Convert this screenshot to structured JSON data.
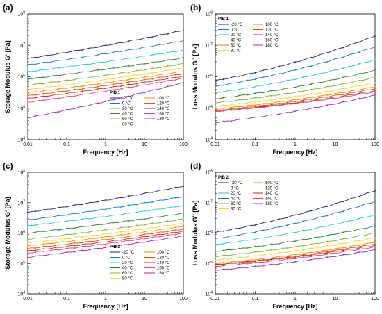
{
  "figure": {
    "panel_labels": [
      "(a)",
      "(b)",
      "(c)",
      "(d)"
    ]
  },
  "temperatures": [
    "-20 °C",
    "0 °C",
    "20 °C",
    "40 °C",
    "60 °C",
    "80 °C",
    "100 °C",
    "120 °C",
    "140 °C",
    "160 °C",
    "180 °C"
  ],
  "colors": [
    "#1a237e",
    "#1976d2",
    "#26c6da",
    "#2e7d32",
    "#7cb342",
    "#fdd835",
    "#fb8c00",
    "#e65100",
    "#c62828",
    "#ec407a",
    "#9c27b0"
  ],
  "chart_data": [
    {
      "type": "line",
      "title": "",
      "legend_title": "PIB 1",
      "legend_placement": "bottom-right",
      "xlabel": "Frequency [Hz]",
      "ylabel": "Storage Modulus G' [Pa]",
      "xscale": "log",
      "yscale": "log",
      "xlim": [
        0.01,
        100
      ],
      "ylim": [
        10000,
        100000000
      ],
      "x_ticks": [
        "0.01",
        "0.1",
        "1",
        "10",
        "100"
      ],
      "y_ticks": [
        "10^4",
        "10^5",
        "10^6",
        "10^7",
        "10^8"
      ],
      "x": [
        0.01,
        100
      ],
      "series": [
        {
          "name": "-20 °C",
          "values": [
            3800000,
            30000000
          ]
        },
        {
          "name": "0 °C",
          "values": [
            2400000,
            14000000
          ]
        },
        {
          "name": "20 °C",
          "values": [
            1450000,
            7000000
          ]
        },
        {
          "name": "40 °C",
          "values": [
            850000,
            4000000
          ]
        },
        {
          "name": "60 °C",
          "values": [
            540000,
            2600000
          ]
        },
        {
          "name": "80 °C",
          "values": [
            390000,
            1900000
          ]
        },
        {
          "name": "100 °C",
          "values": [
            310000,
            1500000
          ]
        },
        {
          "name": "120 °C",
          "values": [
            250000,
            1250000
          ]
        },
        {
          "name": "140 °C",
          "values": [
            205000,
            1050000
          ]
        },
        {
          "name": "160 °C",
          "values": [
            155000,
            900000
          ]
        },
        {
          "name": "180 °C",
          "values": [
            50000,
            650000
          ]
        }
      ]
    },
    {
      "type": "line",
      "title": "",
      "legend_title": "PIB 1",
      "legend_placement": "top-left",
      "xlabel": "Frequency [Hz]",
      "ylabel": "Loss Modulus G'' [Pa]",
      "xscale": "log",
      "yscale": "log",
      "xlim": [
        0.01,
        100
      ],
      "ylim": [
        10000,
        100000000
      ],
      "x_ticks": [
        "0.01",
        "0.1",
        "1",
        "10",
        "100"
      ],
      "y_ticks": [
        "10^4",
        "10^5",
        "10^6",
        "10^7",
        "10^8"
      ],
      "x": [
        0.01,
        100
      ],
      "series": [
        {
          "name": "-20 °C",
          "values": [
            750000,
            20000000
          ]
        },
        {
          "name": "0 °C",
          "values": [
            500000,
            9000000
          ]
        },
        {
          "name": "20 °C",
          "values": [
            310000,
            3500000
          ]
        },
        {
          "name": "40 °C",
          "values": [
            200000,
            1600000
          ]
        },
        {
          "name": "60 °C",
          "values": [
            150000,
            950000
          ]
        },
        {
          "name": "80 °C",
          "values": [
            115000,
            650000
          ]
        },
        {
          "name": "100 °C",
          "values": [
            95000,
            480000
          ]
        },
        {
          "name": "120 °C",
          "values": [
            85000,
            420000
          ]
        },
        {
          "name": "140 °C",
          "values": [
            80000,
            360000
          ]
        },
        {
          "name": "160 °C",
          "values": [
            78000,
            330000
          ]
        },
        {
          "name": "180 °C",
          "values": [
            35000,
            260000
          ]
        }
      ]
    },
    {
      "type": "line",
      "title": "",
      "legend_title": "PIB 2",
      "legend_placement": "bottom-right",
      "xlabel": "Frequency [Hz]",
      "ylabel": "Storage Modulus G' [Pa]",
      "xscale": "log",
      "yscale": "log",
      "xlim": [
        0.01,
        100
      ],
      "ylim": [
        10000,
        100000000
      ],
      "x_ticks": [
        "0.01",
        "0.1",
        "1",
        "10",
        "100"
      ],
      "y_ticks": [
        "10^4",
        "10^5",
        "10^6",
        "10^7",
        "10^8"
      ],
      "x": [
        0.01,
        100
      ],
      "series": [
        {
          "name": "-20 °C",
          "values": [
            4800000,
            35000000
          ]
        },
        {
          "name": "0 °C",
          "values": [
            2700000,
            16000000
          ]
        },
        {
          "name": "20 °C",
          "values": [
            1750000,
            8000000
          ]
        },
        {
          "name": "40 °C",
          "values": [
            1000000,
            4500000
          ]
        },
        {
          "name": "60 °C",
          "values": [
            630000,
            2900000
          ]
        },
        {
          "name": "80 °C",
          "values": [
            470000,
            2100000
          ]
        },
        {
          "name": "100 °C",
          "values": [
            380000,
            1650000
          ]
        },
        {
          "name": "120 °C",
          "values": [
            310000,
            1350000
          ]
        },
        {
          "name": "140 °C",
          "values": [
            260000,
            1150000
          ]
        },
        {
          "name": "160 °C",
          "values": [
            220000,
            1000000
          ]
        },
        {
          "name": "180 °C",
          "values": [
            160000,
            800000
          ]
        }
      ]
    },
    {
      "type": "line",
      "title": "",
      "legend_title": "PIB 2",
      "legend_placement": "top-left",
      "xlabel": "Frequency [Hz]",
      "ylabel": "Loss Modulus G'' [Pa]",
      "xscale": "log",
      "yscale": "log",
      "xlim": [
        0.01,
        100
      ],
      "ylim": [
        10000,
        100000000
      ],
      "x_ticks": [
        "0.01",
        "0.1",
        "1",
        "10",
        "100"
      ],
      "y_ticks": [
        "10^4",
        "10^5",
        "10^6",
        "10^7",
        "10^8"
      ],
      "x": [
        0.01,
        100
      ],
      "series": [
        {
          "name": "-20 °C",
          "values": [
            1050000,
            25000000
          ]
        },
        {
          "name": "0 °C",
          "values": [
            650000,
            11000000
          ]
        },
        {
          "name": "20 °C",
          "values": [
            420000,
            4000000
          ]
        },
        {
          "name": "40 °C",
          "values": [
            250000,
            1700000
          ]
        },
        {
          "name": "60 °C",
          "values": [
            170000,
            1000000
          ]
        },
        {
          "name": "80 °C",
          "values": [
            130000,
            700000
          ]
        },
        {
          "name": "100 °C",
          "values": [
            100000,
            500000
          ]
        },
        {
          "name": "120 °C",
          "values": [
            92000,
            440000
          ]
        },
        {
          "name": "140 °C",
          "values": [
            90000,
            390000
          ]
        },
        {
          "name": "160 °C",
          "values": [
            80000,
            350000
          ]
        },
        {
          "name": "180 °C",
          "values": [
            60000,
            280000
          ]
        }
      ]
    }
  ]
}
